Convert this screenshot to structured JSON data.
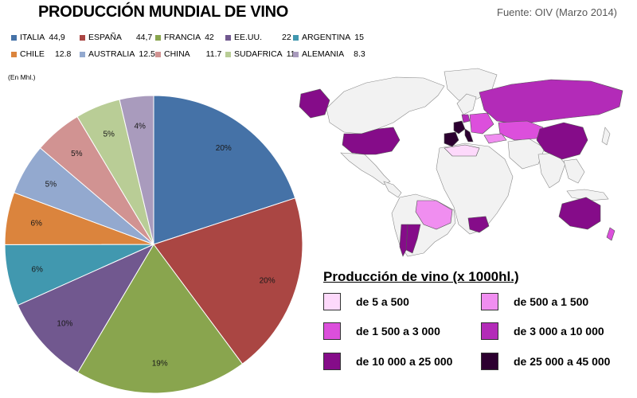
{
  "header": {
    "title": "PRODUCCIÓN MUNDIAL DE VINO",
    "source": "Fuente: OIV (Marzo 2014)"
  },
  "legend": [
    {
      "name": "ITALIA",
      "value": "44,9",
      "color": "#4572a7"
    },
    {
      "name": "ESPAÑA",
      "value": "44,7",
      "color": "#aa4643"
    },
    {
      "name": "FRANCIA",
      "value": "42",
      "color": "#89a54e"
    },
    {
      "name": "EE.UU.",
      "value": "22",
      "color": "#71588f"
    },
    {
      "name": "ARGENTINA",
      "value": "15",
      "color": "#4198af"
    },
    {
      "name": "CHILE",
      "value": "12.8",
      "color": "#db843d"
    },
    {
      "name": "AUSTRALIA",
      "value": "12.5",
      "color": "#93a9cf"
    },
    {
      "name": "CHINA",
      "value": "11.7",
      "color": "#d19392"
    },
    {
      "name": "SUDAFRICA",
      "value": "11",
      "color": "#b9cd96"
    },
    {
      "name": "ALEMANIA",
      "value": "8.3",
      "color": "#a99bbd"
    }
  ],
  "unit_note": "(En Mhl.)",
  "chart_data": {
    "type": "pie",
    "title": "PRODUCCIÓN MUNDIAL DE VINO",
    "unit": "(En Mhl.)",
    "slices": [
      {
        "name": "ITALIA",
        "value": 44.9,
        "label": "20%",
        "color": "#4572a7"
      },
      {
        "name": "ESPAÑA",
        "value": 44.7,
        "label": "20%",
        "color": "#aa4643"
      },
      {
        "name": "FRANCIA",
        "value": 42,
        "label": "19%",
        "color": "#89a54e"
      },
      {
        "name": "EE.UU.",
        "value": 22,
        "label": "10%",
        "color": "#71588f"
      },
      {
        "name": "ARGENTINA",
        "value": 15,
        "label": "6%",
        "color": "#4198af"
      },
      {
        "name": "CHILE",
        "value": 12.8,
        "label": "6%",
        "color": "#db843d"
      },
      {
        "name": "AUSTRALIA",
        "value": 12.5,
        "label": "5%",
        "color": "#93a9cf"
      },
      {
        "name": "CHINA",
        "value": 11.7,
        "label": "5%",
        "color": "#d19392"
      },
      {
        "name": "SUDAFRICA",
        "value": 11,
        "label": "5%",
        "color": "#b9cd96"
      },
      {
        "name": "ALEMANIA",
        "value": 8.3,
        "label": "4%",
        "color": "#a99bbd"
      }
    ],
    "legend_position": "top"
  },
  "map_legend": {
    "title": "Producción de vino (x 1000hl.)",
    "items": [
      {
        "label": "de 5 a 500",
        "color": "#fdd9fb"
      },
      {
        "label": "de 500 a 1 500",
        "color": "#f08ef0"
      },
      {
        "label": "de 1 500 a 3 000",
        "color": "#dc4fdc"
      },
      {
        "label": "de 3 000 a 10 000",
        "color": "#b32bb8"
      },
      {
        "label": "de 10 000 a 25 000",
        "color": "#850c89"
      },
      {
        "label": "de 25 000 a 45 000",
        "color": "#2c0030"
      }
    ]
  }
}
